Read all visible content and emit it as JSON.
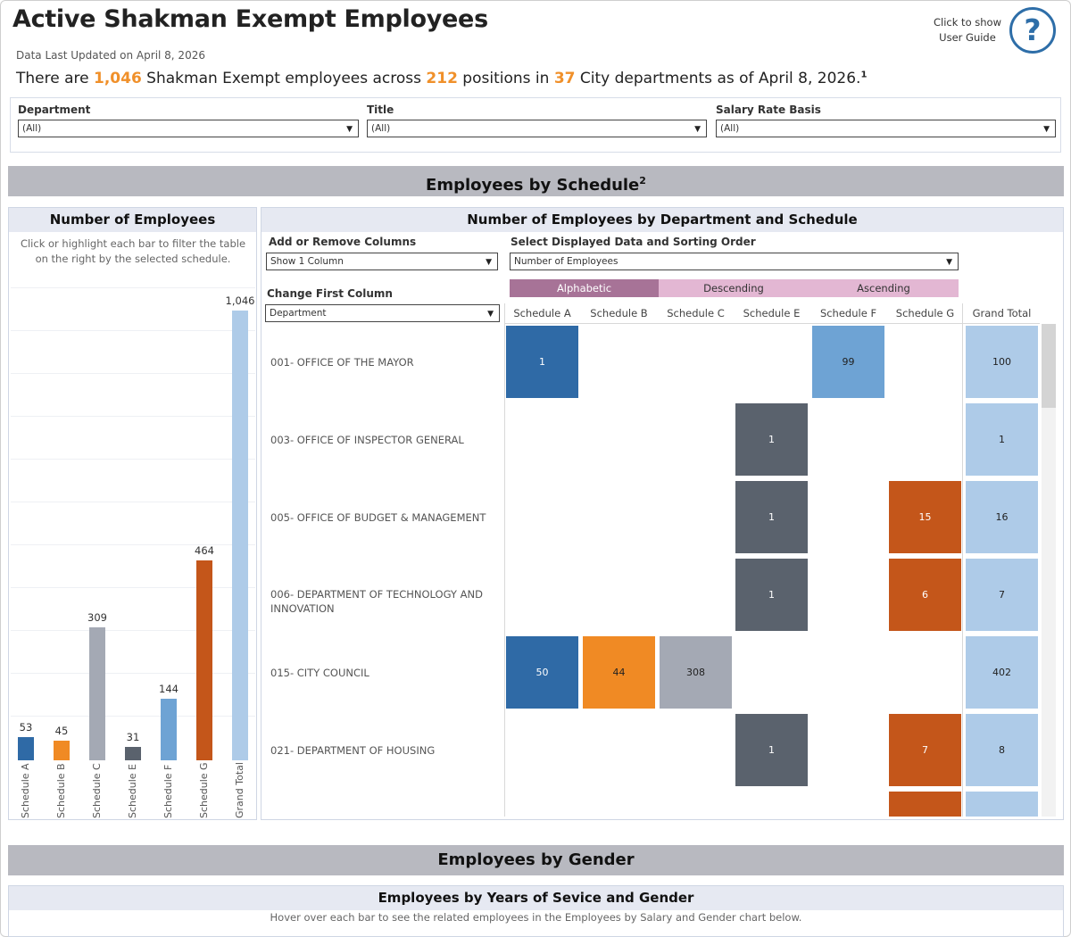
{
  "header": {
    "title": "Active Shakman Exempt Employees",
    "updated": "Data Last Updated on April 8, 2026",
    "summary": {
      "pre": "There are ",
      "employees": "1,046",
      "mid1": " Shakman Exempt employees across ",
      "positions": "212",
      "mid2": " positions in ",
      "departments": "37",
      "post": " City departments as of April 8, 2026.",
      "footnote": "1"
    },
    "guide_label": "Click to show User Guide",
    "guide_icon": "question-circle-icon"
  },
  "filters": [
    {
      "label": "Department",
      "value": "(All)"
    },
    {
      "label": "Title",
      "value": "(All)"
    },
    {
      "label": "Salary Rate Basis",
      "value": "(All)"
    }
  ],
  "schedule_section": {
    "title": "Employees by Schedule",
    "footnote": "2"
  },
  "left_panel": {
    "title": "Number of Employees",
    "hint": "Click or highlight each bar to filter the table on the right by the selected schedule."
  },
  "chart_data": {
    "type": "bar",
    "categories": [
      "Schedule A",
      "Schedule B",
      "Schedule C",
      "Schedule E",
      "Schedule F",
      "Schedule G",
      "Grand Total"
    ],
    "values": [
      53,
      45,
      309,
      31,
      144,
      464,
      1046
    ],
    "value_labels": [
      "53",
      "45",
      "309",
      "31",
      "144",
      "464",
      "1,046"
    ],
    "colors": [
      "#2f6aa6",
      "#f08a24",
      "#a4a9b4",
      "#5a626d",
      "#6ea3d4",
      "#c4561a",
      "#aecbe8"
    ]
  },
  "right_panel": {
    "title": "Number of Employees by Department and Schedule",
    "add_remove_label": "Add or Remove Columns",
    "add_remove_value": "Show 1 Column",
    "display_label": "Select Displayed Data and Sorting Order",
    "display_value": "Number of Employees",
    "change_first_label": "Change First Column",
    "change_first_value": "Department",
    "sort_buttons": [
      "Alphabetic",
      "Descending",
      "Ascending"
    ],
    "columns": [
      "Schedule A",
      "Schedule B",
      "Schedule C",
      "Schedule E",
      "Schedule F",
      "Schedule G",
      "Grand Total"
    ],
    "rows": [
      {
        "label": "001- OFFICE OF THE MAYOR",
        "cells": [
          "1",
          "",
          "",
          "",
          "99",
          "",
          "100"
        ]
      },
      {
        "label": "003- OFFICE OF INSPECTOR GENERAL",
        "cells": [
          "",
          "",
          "",
          "1",
          "",
          "",
          "1"
        ]
      },
      {
        "label": "005- OFFICE OF BUDGET & MANAGEMENT",
        "cells": [
          "",
          "",
          "",
          "1",
          "",
          "15",
          "16"
        ]
      },
      {
        "label": "006- DEPARTMENT OF TECHNOLOGY AND INNOVATION",
        "cells": [
          "",
          "",
          "",
          "1",
          "",
          "6",
          "7"
        ]
      },
      {
        "label": "015- CITY COUNCIL",
        "cells": [
          "50",
          "44",
          "308",
          "",
          "",
          "",
          "402"
        ]
      },
      {
        "label": "021- DEPARTMENT OF HOUSING",
        "cells": [
          "",
          "",
          "",
          "1",
          "",
          "7",
          "8"
        ]
      }
    ]
  },
  "gender_section": {
    "title": "Employees by Gender",
    "sub_title": "Employees by Years of Sevice and Gender",
    "sub_hint": "Hover over each bar to see the related employees in the Employees by Salary and Gender chart below."
  }
}
